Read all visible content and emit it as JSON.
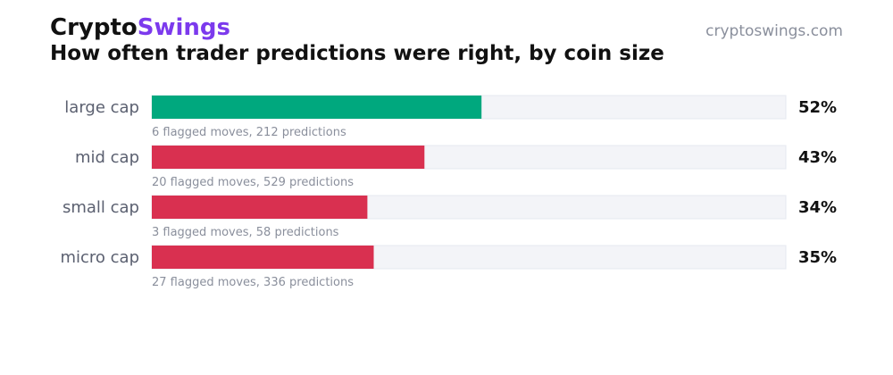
{
  "header": {
    "brand_part1": "Crypto",
    "brand_part2": "Swings",
    "site": "cryptoswings.com",
    "title": "How often trader predictions were right, by coin size"
  },
  "colors": {
    "brand_accent": "#7c3aed",
    "above_half": "#00a87e",
    "below_half": "#d93050",
    "track": "#f3f4f8",
    "track_border": "#e6e8f0"
  },
  "chart_data": {
    "type": "bar",
    "orientation": "horizontal",
    "title": "How often trader predictions were right, by coin size",
    "xlim": [
      0,
      100
    ],
    "unit": "%",
    "grid": false,
    "categories": [
      "large cap",
      "mid cap",
      "small cap",
      "micro cap"
    ],
    "values": [
      52,
      43,
      34,
      35
    ],
    "value_labels": [
      "52%",
      "43%",
      "34%",
      "35%"
    ],
    "annotations": [
      "6 flagged moves, 212 predictions",
      "20 flagged moves, 529 predictions",
      "3 flagged moves, 58 predictions",
      "27 flagged moves, 336 predictions"
    ],
    "bar_colors": [
      "#00a87e",
      "#d93050",
      "#d93050",
      "#d93050"
    ]
  }
}
